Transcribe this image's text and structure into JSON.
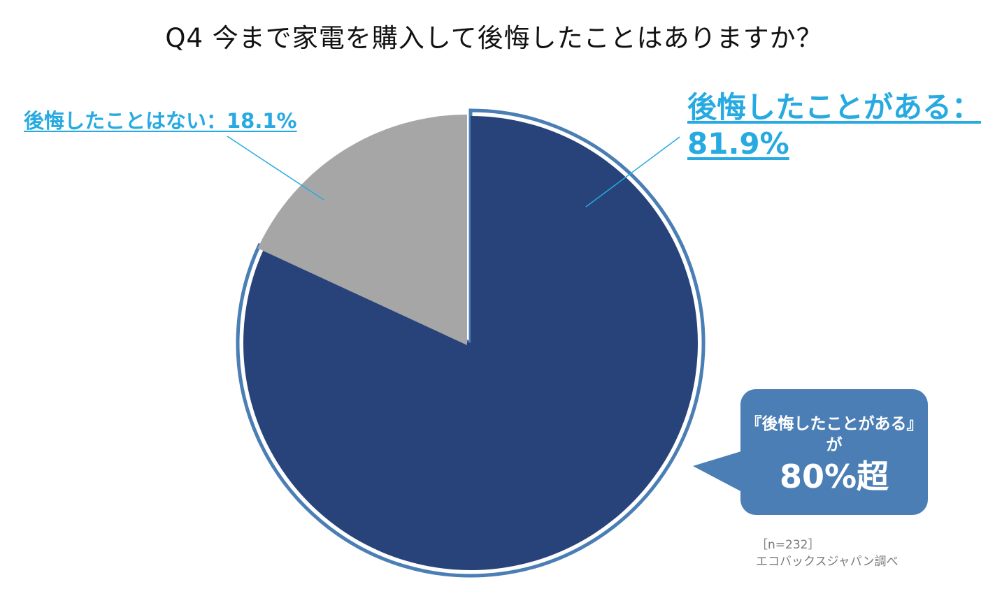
{
  "title": "Q4 今まで家電を購入して後悔したことはありますか？",
  "chart_data": {
    "type": "pie",
    "title": "Q4 今まで家電を購入して後悔したことはありますか？",
    "slices": [
      {
        "label": "後悔したことがある",
        "value": 81.9,
        "color": "#27437a",
        "exploded": true
      },
      {
        "label": "後悔したことはない",
        "value": 18.1,
        "color": "#a6a6a6",
        "exploded": false
      }
    ],
    "start": "12 o'clock",
    "direction": "clockwise"
  },
  "labels": {
    "no_regret": "後悔したことはない：18.1%",
    "regret_line1": "後悔したことがある：",
    "regret_line2": "81.9%"
  },
  "callout": {
    "line1": "『後悔したことがある』",
    "line2": "が",
    "line3": "80%超",
    "color": "#4a7eb4"
  },
  "note": {
    "sample": "［n=232］",
    "source": "エコバックスジャパン調べ"
  },
  "colors": {
    "label_text": "#27aae1",
    "outline": "#4a7eb4"
  }
}
